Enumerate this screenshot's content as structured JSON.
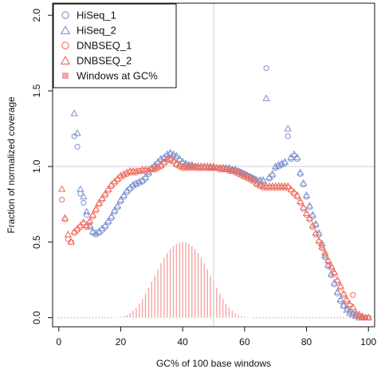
{
  "chart_data": {
    "type": "scatter",
    "xlabel": "GC% of 100 base windows",
    "ylabel": "Fraction of normalized coverage",
    "xlim": [
      -2,
      102
    ],
    "ylim": [
      -0.06,
      2.08
    ],
    "x_ticks": [
      0,
      20,
      40,
      60,
      80,
      100
    ],
    "y_ticks": [
      0.0,
      0.5,
      1.0,
      1.5,
      2.0
    ],
    "x_tick_labels": [
      "0",
      "20",
      "40",
      "60",
      "80",
      "100"
    ],
    "y_tick_labels": [
      "0.0",
      "0.5",
      "1.0",
      "1.5",
      "2.0"
    ],
    "reference_lines": {
      "x": 50,
      "y": 1.0
    },
    "legend_position": "top-left",
    "legend": [
      {
        "label": "HiSeq_1",
        "marker": "circle",
        "color": "#7b8fd0"
      },
      {
        "label": "HiSeq_2",
        "marker": "triangle",
        "color": "#7b8fd0"
      },
      {
        "label": "DNBSEQ_1",
        "marker": "circle",
        "color": "#ef6a5a"
      },
      {
        "label": "DNBSEQ_2",
        "marker": "triangle",
        "color": "#ef6a5a"
      },
      {
        "label": "Windows at GC%",
        "marker": "square",
        "color": "#f4a6a6"
      }
    ],
    "x": [
      0,
      1,
      2,
      3,
      4,
      5,
      6,
      7,
      8,
      9,
      10,
      11,
      12,
      13,
      14,
      15,
      16,
      17,
      18,
      19,
      20,
      21,
      22,
      23,
      24,
      25,
      26,
      27,
      28,
      29,
      30,
      31,
      32,
      33,
      34,
      35,
      36,
      37,
      38,
      39,
      40,
      41,
      42,
      43,
      44,
      45,
      46,
      47,
      48,
      49,
      50,
      51,
      52,
      53,
      54,
      55,
      56,
      57,
      58,
      59,
      60,
      61,
      62,
      63,
      64,
      65,
      66,
      67,
      68,
      69,
      70,
      71,
      72,
      73,
      74,
      75,
      76,
      77,
      78,
      79,
      80,
      81,
      82,
      83,
      84,
      85,
      86,
      87,
      88,
      89,
      90,
      91,
      92,
      93,
      94,
      95,
      96,
      97,
      98,
      99,
      100
    ],
    "series": [
      {
        "name": "HiSeq_1",
        "marker": "circle",
        "color": "#7b8fd0",
        "values": [
          null,
          null,
          null,
          1.64,
          null,
          1.2,
          1.13,
          0.82,
          0.76,
          0.68,
          0.6,
          0.56,
          0.55,
          0.56,
          0.58,
          0.6,
          0.63,
          0.66,
          0.7,
          0.73,
          0.77,
          0.8,
          0.83,
          0.85,
          0.87,
          0.88,
          0.89,
          0.9,
          0.92,
          0.95,
          0.98,
          1.0,
          1.02,
          1.04,
          1.05,
          1.07,
          1.08,
          1.07,
          1.06,
          1.04,
          1.02,
          1.01,
          1.0,
          1.0,
          1.0,
          0.99,
          0.99,
          0.99,
          0.99,
          0.99,
          0.99,
          0.99,
          0.99,
          0.99,
          0.98,
          0.98,
          0.98,
          0.97,
          0.97,
          0.96,
          0.95,
          0.94,
          0.93,
          0.92,
          0.9,
          0.9,
          0.9,
          1.65,
          0.92,
          0.94,
          0.99,
          1.0,
          1.01,
          1.02,
          1.2,
          1.05,
          1.07,
          1.05,
          0.95,
          0.88,
          0.8,
          0.73,
          0.67,
          0.61,
          0.55,
          0.48,
          0.4,
          0.34,
          0.28,
          0.22,
          0.16,
          0.11,
          0.08,
          0.06,
          0.04,
          0.03,
          0.02,
          0.01,
          0.0,
          0.0,
          0.0
        ]
      },
      {
        "name": "HiSeq_2",
        "marker": "triangle",
        "color": "#7b8fd0",
        "values": [
          null,
          null,
          null,
          1.97,
          null,
          1.35,
          1.22,
          0.85,
          0.8,
          0.7,
          0.61,
          0.57,
          0.56,
          0.57,
          0.59,
          0.61,
          0.64,
          0.67,
          0.71,
          0.74,
          0.78,
          0.81,
          0.84,
          0.86,
          0.88,
          0.89,
          0.9,
          0.91,
          0.93,
          0.96,
          0.99,
          1.01,
          1.03,
          1.05,
          1.06,
          1.08,
          1.09,
          1.08,
          1.07,
          1.05,
          1.03,
          1.02,
          1.01,
          1.01,
          1.0,
          1.0,
          1.0,
          1.0,
          1.0,
          0.99,
          0.99,
          0.99,
          0.99,
          0.99,
          0.99,
          0.99,
          0.98,
          0.98,
          0.97,
          0.96,
          0.95,
          0.94,
          0.93,
          0.92,
          0.91,
          0.91,
          0.91,
          1.45,
          0.93,
          0.95,
          1.0,
          1.01,
          1.02,
          1.03,
          1.25,
          1.06,
          1.08,
          1.06,
          0.96,
          0.89,
          0.81,
          0.74,
          0.68,
          0.62,
          0.56,
          0.49,
          0.41,
          0.35,
          0.29,
          0.23,
          0.17,
          0.12,
          0.08,
          0.05,
          0.03,
          0.02,
          0.01,
          0.0,
          0.0,
          0.0,
          0.0
        ]
      },
      {
        "name": "DNBSEQ_1",
        "marker": "circle",
        "color": "#ef6a5a",
        "values": [
          null,
          0.78,
          0.65,
          0.52,
          0.5,
          0.56,
          0.58,
          0.6,
          0.62,
          0.6,
          0.63,
          0.67,
          0.71,
          0.75,
          0.78,
          0.81,
          0.84,
          0.87,
          0.89,
          0.91,
          0.93,
          0.94,
          0.95,
          0.96,
          0.96,
          0.96,
          0.97,
          0.97,
          0.97,
          0.97,
          0.98,
          0.98,
          0.99,
          1.0,
          1.02,
          1.04,
          1.04,
          1.03,
          1.01,
          1.0,
          0.99,
          0.99,
          0.99,
          0.99,
          0.99,
          0.99,
          0.99,
          0.99,
          0.99,
          0.99,
          0.99,
          0.99,
          0.98,
          0.98,
          0.98,
          0.97,
          0.97,
          0.96,
          0.95,
          0.94,
          0.93,
          0.92,
          0.91,
          0.9,
          0.88,
          0.87,
          0.86,
          0.86,
          0.86,
          0.86,
          0.86,
          0.86,
          0.86,
          0.86,
          0.86,
          0.84,
          0.82,
          0.8,
          0.76,
          0.72,
          0.68,
          0.65,
          0.6,
          0.55,
          0.5,
          0.46,
          0.42,
          0.37,
          0.33,
          0.29,
          0.24,
          0.2,
          0.15,
          0.11,
          0.08,
          0.15,
          0.02,
          0.01,
          0.0,
          0.0,
          0.0
        ]
      },
      {
        "name": "DNBSEQ_2",
        "marker": "triangle",
        "color": "#ef6a5a",
        "values": [
          null,
          0.85,
          0.66,
          0.55,
          0.5,
          0.57,
          0.59,
          0.61,
          0.63,
          0.61,
          0.64,
          0.68,
          0.72,
          0.76,
          0.79,
          0.82,
          0.85,
          0.88,
          0.9,
          0.92,
          0.94,
          0.95,
          0.96,
          0.97,
          0.97,
          0.97,
          0.97,
          0.98,
          0.98,
          0.98,
          0.98,
          0.99,
          1.0,
          1.01,
          1.03,
          1.05,
          1.05,
          1.04,
          1.02,
          1.01,
          1.0,
          1.0,
          1.0,
          1.0,
          1.0,
          1.0,
          1.0,
          1.0,
          1.0,
          1.0,
          1.0,
          0.99,
          0.99,
          0.99,
          0.98,
          0.98,
          0.97,
          0.97,
          0.96,
          0.95,
          0.94,
          0.93,
          0.92,
          0.91,
          0.89,
          0.88,
          0.87,
          0.87,
          0.87,
          0.87,
          0.87,
          0.87,
          0.87,
          0.87,
          0.87,
          0.85,
          0.83,
          0.81,
          0.77,
          0.73,
          0.69,
          0.66,
          0.61,
          0.56,
          0.51,
          0.47,
          0.43,
          0.38,
          0.34,
          0.3,
          0.25,
          0.21,
          0.16,
          0.12,
          0.09,
          0.07,
          0.03,
          0.02,
          0.01,
          0.0,
          0.0
        ]
      },
      {
        "name": "Windows at GC%",
        "marker": "square",
        "color": "#f4a6a6",
        "values": [
          0.0,
          0.0,
          0.0,
          0.0,
          0.0,
          0.0,
          0.0,
          0.0,
          0.0,
          0.0,
          0.0,
          0.0,
          0.0,
          0.0,
          0.0,
          0.0,
          0.0,
          0.0,
          0.001,
          0.003,
          0.006,
          0.011,
          0.019,
          0.03,
          0.046,
          0.067,
          0.093,
          0.124,
          0.159,
          0.198,
          0.238,
          0.28,
          0.321,
          0.36,
          0.396,
          0.428,
          0.454,
          0.474,
          0.489,
          0.497,
          0.5,
          0.497,
          0.489,
          0.474,
          0.454,
          0.428,
          0.396,
          0.36,
          0.321,
          0.28,
          0.238,
          0.198,
          0.159,
          0.124,
          0.093,
          0.067,
          0.046,
          0.03,
          0.019,
          0.011,
          0.006,
          0.003,
          0.001,
          0.0,
          0.0,
          0.0,
          0.0,
          0.0,
          0.0,
          0.0,
          0.0,
          0.0,
          0.0,
          0.0,
          0.0,
          0.0,
          0.0,
          0.0,
          0.0,
          0.0,
          0.0,
          0.0,
          0.0,
          0.0,
          0.0,
          0.0,
          0.0,
          0.0,
          0.0,
          0.0,
          0.0,
          0.0,
          0.0,
          0.0,
          0.0,
          0.0,
          0.0,
          0.0,
          0.0,
          0.0,
          0.0
        ]
      }
    ]
  }
}
